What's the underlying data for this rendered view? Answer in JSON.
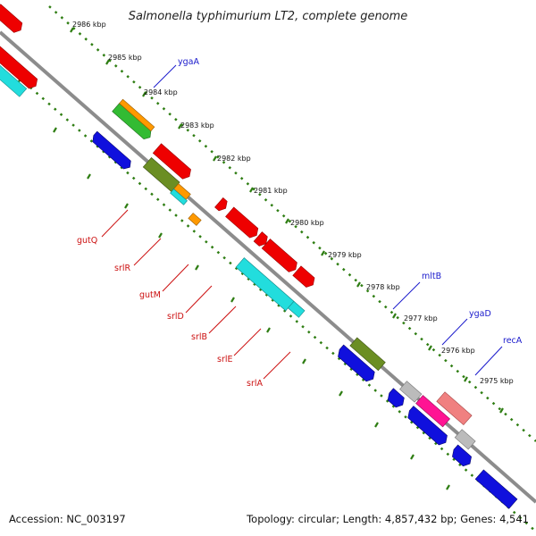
{
  "title": "Salmonella typhimurium LT2, complete genome",
  "footer": {
    "accession": "Accession: NC_003197",
    "topology": "Topology: circular; Length: 4,857,432 bp; Genes: 4,541"
  },
  "kbp_ticks": [
    "2986 kbp",
    "2985 kbp",
    "2984 kbp",
    "2983 kbp",
    "2982 kbp",
    "2981 kbp",
    "2980 kbp",
    "2979 kbp",
    "2978 kbp",
    "2977 kbp",
    "2976 kbp",
    "2975 kbp"
  ],
  "genes": {
    "ygaA": "ygaA",
    "gutQ": "gutQ",
    "srlR": "srlR",
    "gutM": "gutM",
    "srlD": "srlD",
    "srlB": "srlB",
    "srlE": "srlE",
    "srlA": "srlA",
    "mltB": "mltB",
    "ygaD": "ygaD",
    "recA": "recA"
  },
  "colors": {
    "backbone": "#8c8c8c",
    "ruler": "#2e7d12",
    "forward_label": "#1a1acc",
    "reverse_label": "#cc1111",
    "red": "#ee0000",
    "blue": "#1010dd",
    "cyan": "#22dddd",
    "olive": "#6b8e23",
    "orange": "#ff9900",
    "green": "#33bb33",
    "gray": "#bbbbbb",
    "magenta": "#ff1493",
    "salmon": "#f08080"
  }
}
